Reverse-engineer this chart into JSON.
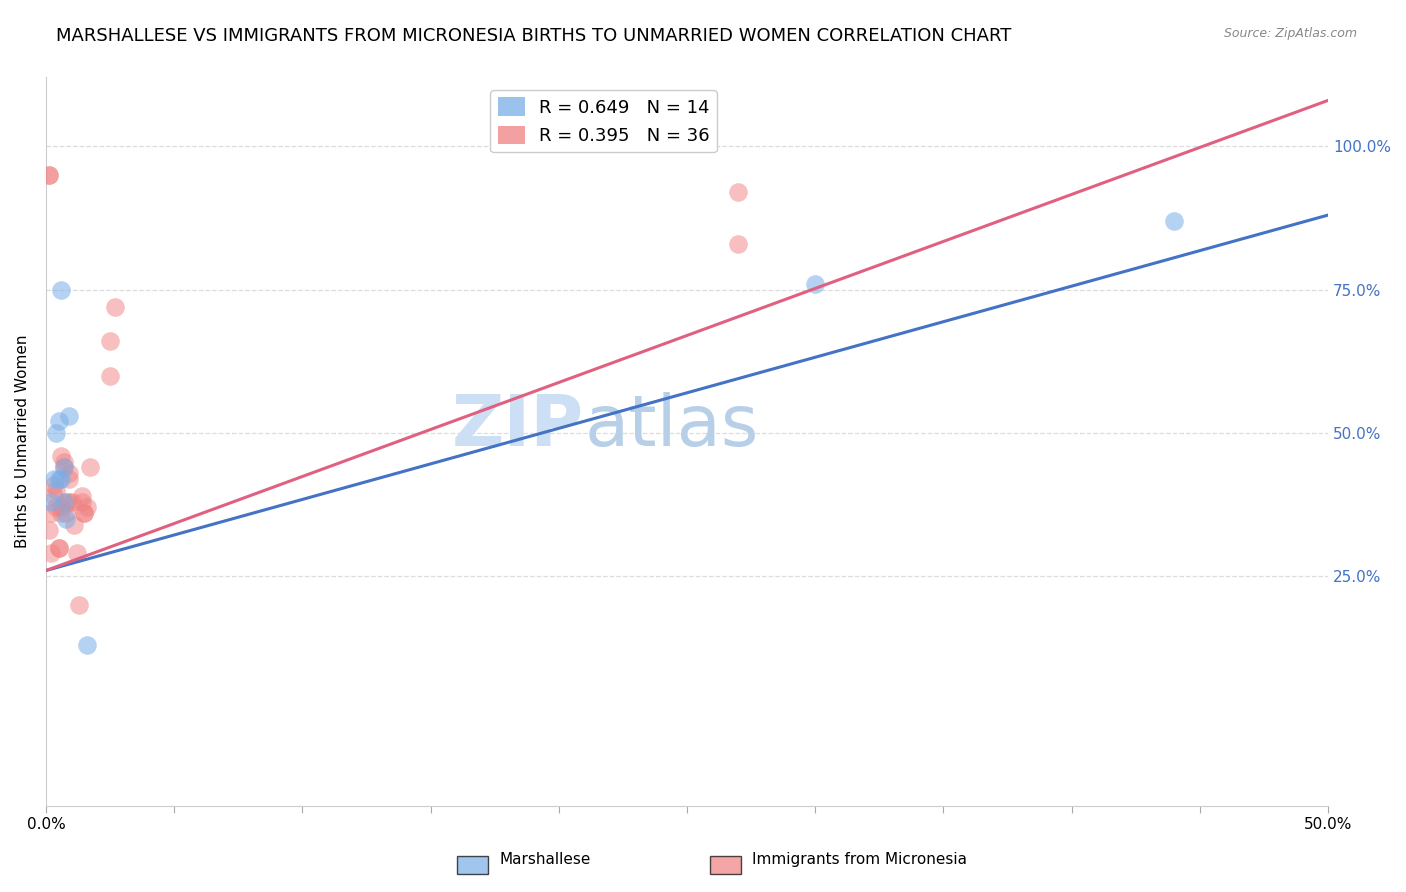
{
  "title": "MARSHALLESE VS IMMIGRANTS FROM MICRONESIA BIRTHS TO UNMARRIED WOMEN CORRELATION CHART",
  "source": "Source: ZipAtlas.com",
  "ylabel": "Births to Unmarried Women",
  "ytick_labels": [
    "100.0%",
    "75.0%",
    "50.0%",
    "25.0%"
  ],
  "ytick_values": [
    1.0,
    0.75,
    0.5,
    0.25
  ],
  "xlim": [
    0.0,
    0.5
  ],
  "ylim": [
    -0.15,
    1.12
  ],
  "watermark_top": "ZIP",
  "watermark_bottom": "atlas",
  "legend_entries": [
    {
      "label": "R = 0.649   N = 14",
      "color": "#7aaee8"
    },
    {
      "label": "R = 0.395   N = 36",
      "color": "#f08080"
    }
  ],
  "marshallese_x": [
    0.002,
    0.003,
    0.004,
    0.005,
    0.005,
    0.006,
    0.006,
    0.007,
    0.007,
    0.008,
    0.009,
    0.016,
    0.3,
    0.44
  ],
  "marshallese_y": [
    0.38,
    0.42,
    0.5,
    0.42,
    0.52,
    0.42,
    0.75,
    0.44,
    0.38,
    0.35,
    0.53,
    0.13,
    0.76,
    0.87
  ],
  "micronesia_x": [
    0.001,
    0.001,
    0.001,
    0.002,
    0.002,
    0.003,
    0.003,
    0.004,
    0.004,
    0.005,
    0.005,
    0.006,
    0.006,
    0.006,
    0.007,
    0.007,
    0.008,
    0.008,
    0.009,
    0.009,
    0.009,
    0.01,
    0.011,
    0.012,
    0.013,
    0.014,
    0.014,
    0.015,
    0.015,
    0.016,
    0.017,
    0.025,
    0.025,
    0.027,
    0.27,
    0.27
  ],
  "micronesia_y": [
    0.95,
    0.95,
    0.33,
    0.29,
    0.36,
    0.39,
    0.41,
    0.37,
    0.4,
    0.3,
    0.3,
    0.36,
    0.37,
    0.46,
    0.44,
    0.45,
    0.36,
    0.38,
    0.38,
    0.42,
    0.43,
    0.38,
    0.34,
    0.29,
    0.2,
    0.38,
    0.39,
    0.36,
    0.36,
    0.37,
    0.44,
    0.6,
    0.66,
    0.72,
    0.83,
    0.92
  ],
  "blue_line_x": [
    0.0,
    0.5
  ],
  "blue_line_y": [
    0.26,
    0.88
  ],
  "pink_line_x": [
    0.0,
    0.5
  ],
  "pink_line_y": [
    0.26,
    1.08
  ],
  "marker_color_blue": "#7aaee8",
  "marker_color_pink": "#f08080",
  "line_color_blue": "#4472c4",
  "line_color_pink": "#e06080",
  "background_color": "#ffffff",
  "grid_color": "#dddddd",
  "title_fontsize": 13,
  "axis_label_fontsize": 11,
  "tick_fontsize": 11,
  "legend_fontsize": 13,
  "watermark_fontsize": 52,
  "watermark_color": "#ccdff5",
  "right_tick_color": "#4472c4"
}
